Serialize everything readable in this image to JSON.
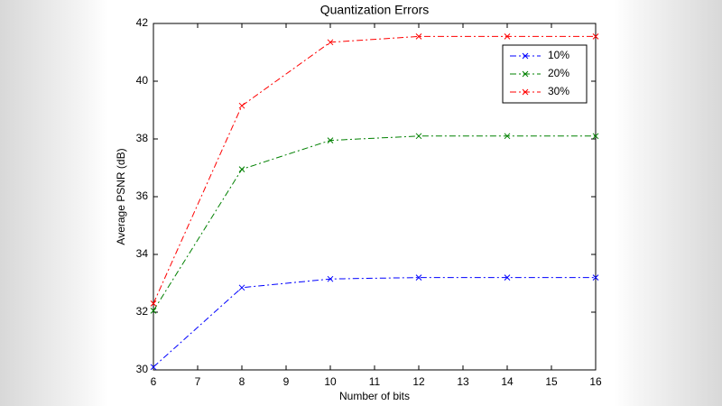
{
  "chart_data": {
    "type": "line",
    "title": "Quantization Errors",
    "x_label": "Number of bits",
    "y_label": "Average PSNR (dB)",
    "x": [
      6,
      8,
      10,
      12,
      14,
      16
    ],
    "series": [
      {
        "name": "10%",
        "color": "#0000ff",
        "values": [
          30.1,
          32.85,
          33.15,
          33.2,
          33.2,
          33.2
        ]
      },
      {
        "name": "20%",
        "color": "#008000",
        "values": [
          32.05,
          36.95,
          37.95,
          38.1,
          38.1,
          38.1
        ]
      },
      {
        "name": "30%",
        "color": "#ff0000",
        "values": [
          32.3,
          39.15,
          41.35,
          41.55,
          41.55,
          41.55
        ]
      }
    ],
    "xlim": [
      6,
      16
    ],
    "xticks": [
      6,
      7,
      8,
      9,
      10,
      11,
      12,
      13,
      14,
      15,
      16
    ],
    "ylim": [
      30,
      42
    ],
    "yticks": [
      30,
      32,
      34,
      36,
      38,
      40,
      42
    ],
    "grid": false,
    "legend": "northeast",
    "marker": "x",
    "line_style": "dashdot"
  }
}
